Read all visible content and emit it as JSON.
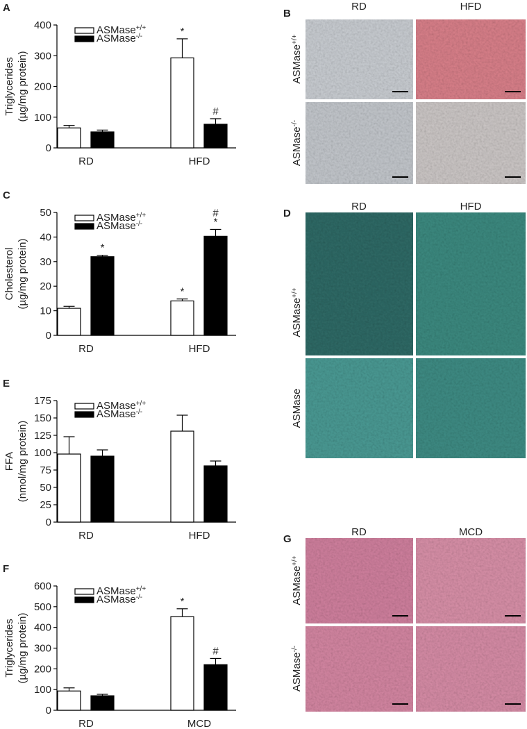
{
  "chart_data": [
    {
      "type": "bar",
      "letter": "A",
      "y_label": [
        "Triglycerides",
        "(µg/mg protein)"
      ],
      "categories": [
        "RD",
        "HFD"
      ],
      "series": [
        {
          "name": "ASMase",
          "name_sup": "+/+",
          "color": "#ffffff",
          "values": [
            65,
            293
          ],
          "errors": [
            8,
            62
          ],
          "annotations": [
            null,
            [
              "*"
            ]
          ]
        },
        {
          "name": "ASMase",
          "name_sup": "-/-",
          "color": "#000000",
          "values": [
            52,
            77
          ],
          "errors": [
            6,
            18
          ],
          "annotations": [
            null,
            [
              "#"
            ]
          ]
        }
      ],
      "ylim": [
        0,
        400
      ],
      "yticks": [
        0,
        100,
        200,
        300,
        400
      ]
    },
    {
      "type": "bar",
      "letter": "C",
      "y_label": [
        "Cholesterol",
        "(µg/mg protein)"
      ],
      "categories": [
        "RD",
        "HFD"
      ],
      "series": [
        {
          "name": "ASMase",
          "name_sup": "+/+",
          "color": "#ffffff",
          "values": [
            11,
            14
          ],
          "errors": [
            0.8,
            0.8
          ],
          "annotations": [
            null,
            [
              "*"
            ]
          ]
        },
        {
          "name": "ASMase",
          "name_sup": "-/-",
          "color": "#000000",
          "values": [
            32,
            40.3
          ],
          "errors": [
            0.6,
            2.8
          ],
          "annotations": [
            [
              "*"
            ],
            [
              "#",
              "*"
            ]
          ]
        }
      ],
      "ylim": [
        0,
        50
      ],
      "yticks": [
        0,
        10,
        20,
        30,
        40,
        50
      ]
    },
    {
      "type": "bar",
      "letter": "E",
      "y_label": [
        "FFA",
        "(nmol/mg protein)"
      ],
      "categories": [
        "RD",
        "HFD"
      ],
      "series": [
        {
          "name": "ASMase",
          "name_sup": "+/+",
          "color": "#ffffff",
          "values": [
            98,
            131
          ],
          "errors": [
            25,
            23
          ],
          "annotations": [
            null,
            null
          ]
        },
        {
          "name": "ASMase",
          "name_sup": "-/-",
          "color": "#000000",
          "values": [
            95,
            81
          ],
          "errors": [
            9,
            7
          ],
          "annotations": [
            null,
            null
          ]
        }
      ],
      "ylim": [
        0,
        175
      ],
      "yticks": [
        0,
        25,
        50,
        75,
        100,
        125,
        150,
        175
      ]
    },
    {
      "type": "bar",
      "letter": "F",
      "y_label": [
        "Triglycerides",
        "(µg/mg protein)"
      ],
      "categories": [
        "RD",
        "MCD"
      ],
      "series": [
        {
          "name": "ASMase",
          "name_sup": "+/+",
          "color": "#ffffff",
          "values": [
            93,
            452
          ],
          "errors": [
            15,
            38
          ],
          "annotations": [
            null,
            [
              "*"
            ]
          ]
        },
        {
          "name": "ASMase",
          "name_sup": "-/-",
          "color": "#000000",
          "values": [
            70,
            220
          ],
          "errors": [
            7,
            30
          ],
          "annotations": [
            null,
            [
              "#"
            ]
          ]
        }
      ],
      "ylim": [
        0,
        600
      ],
      "yticks": [
        0,
        100,
        200,
        300,
        400,
        500,
        600
      ]
    }
  ],
  "image_panels": [
    {
      "letter": "B",
      "columns": [
        "RD",
        "HFD"
      ],
      "rows": [
        {
          "label": "ASMase",
          "sup": "+/+"
        },
        {
          "label": "ASMase",
          "sup": "-/-"
        }
      ]
    },
    {
      "letter": "D",
      "columns": [
        "RD",
        "HFD"
      ],
      "rows": [
        {
          "label": "ASMase",
          "sup": "+/+"
        },
        {
          "label": "ASMase"
        }
      ]
    },
    {
      "letter": "G",
      "columns": [
        "RD",
        "MCD"
      ],
      "rows": [
        {
          "label": "ASMase",
          "sup": "+/+"
        },
        {
          "label": "ASMase",
          "sup": "-/-"
        }
      ]
    }
  ]
}
